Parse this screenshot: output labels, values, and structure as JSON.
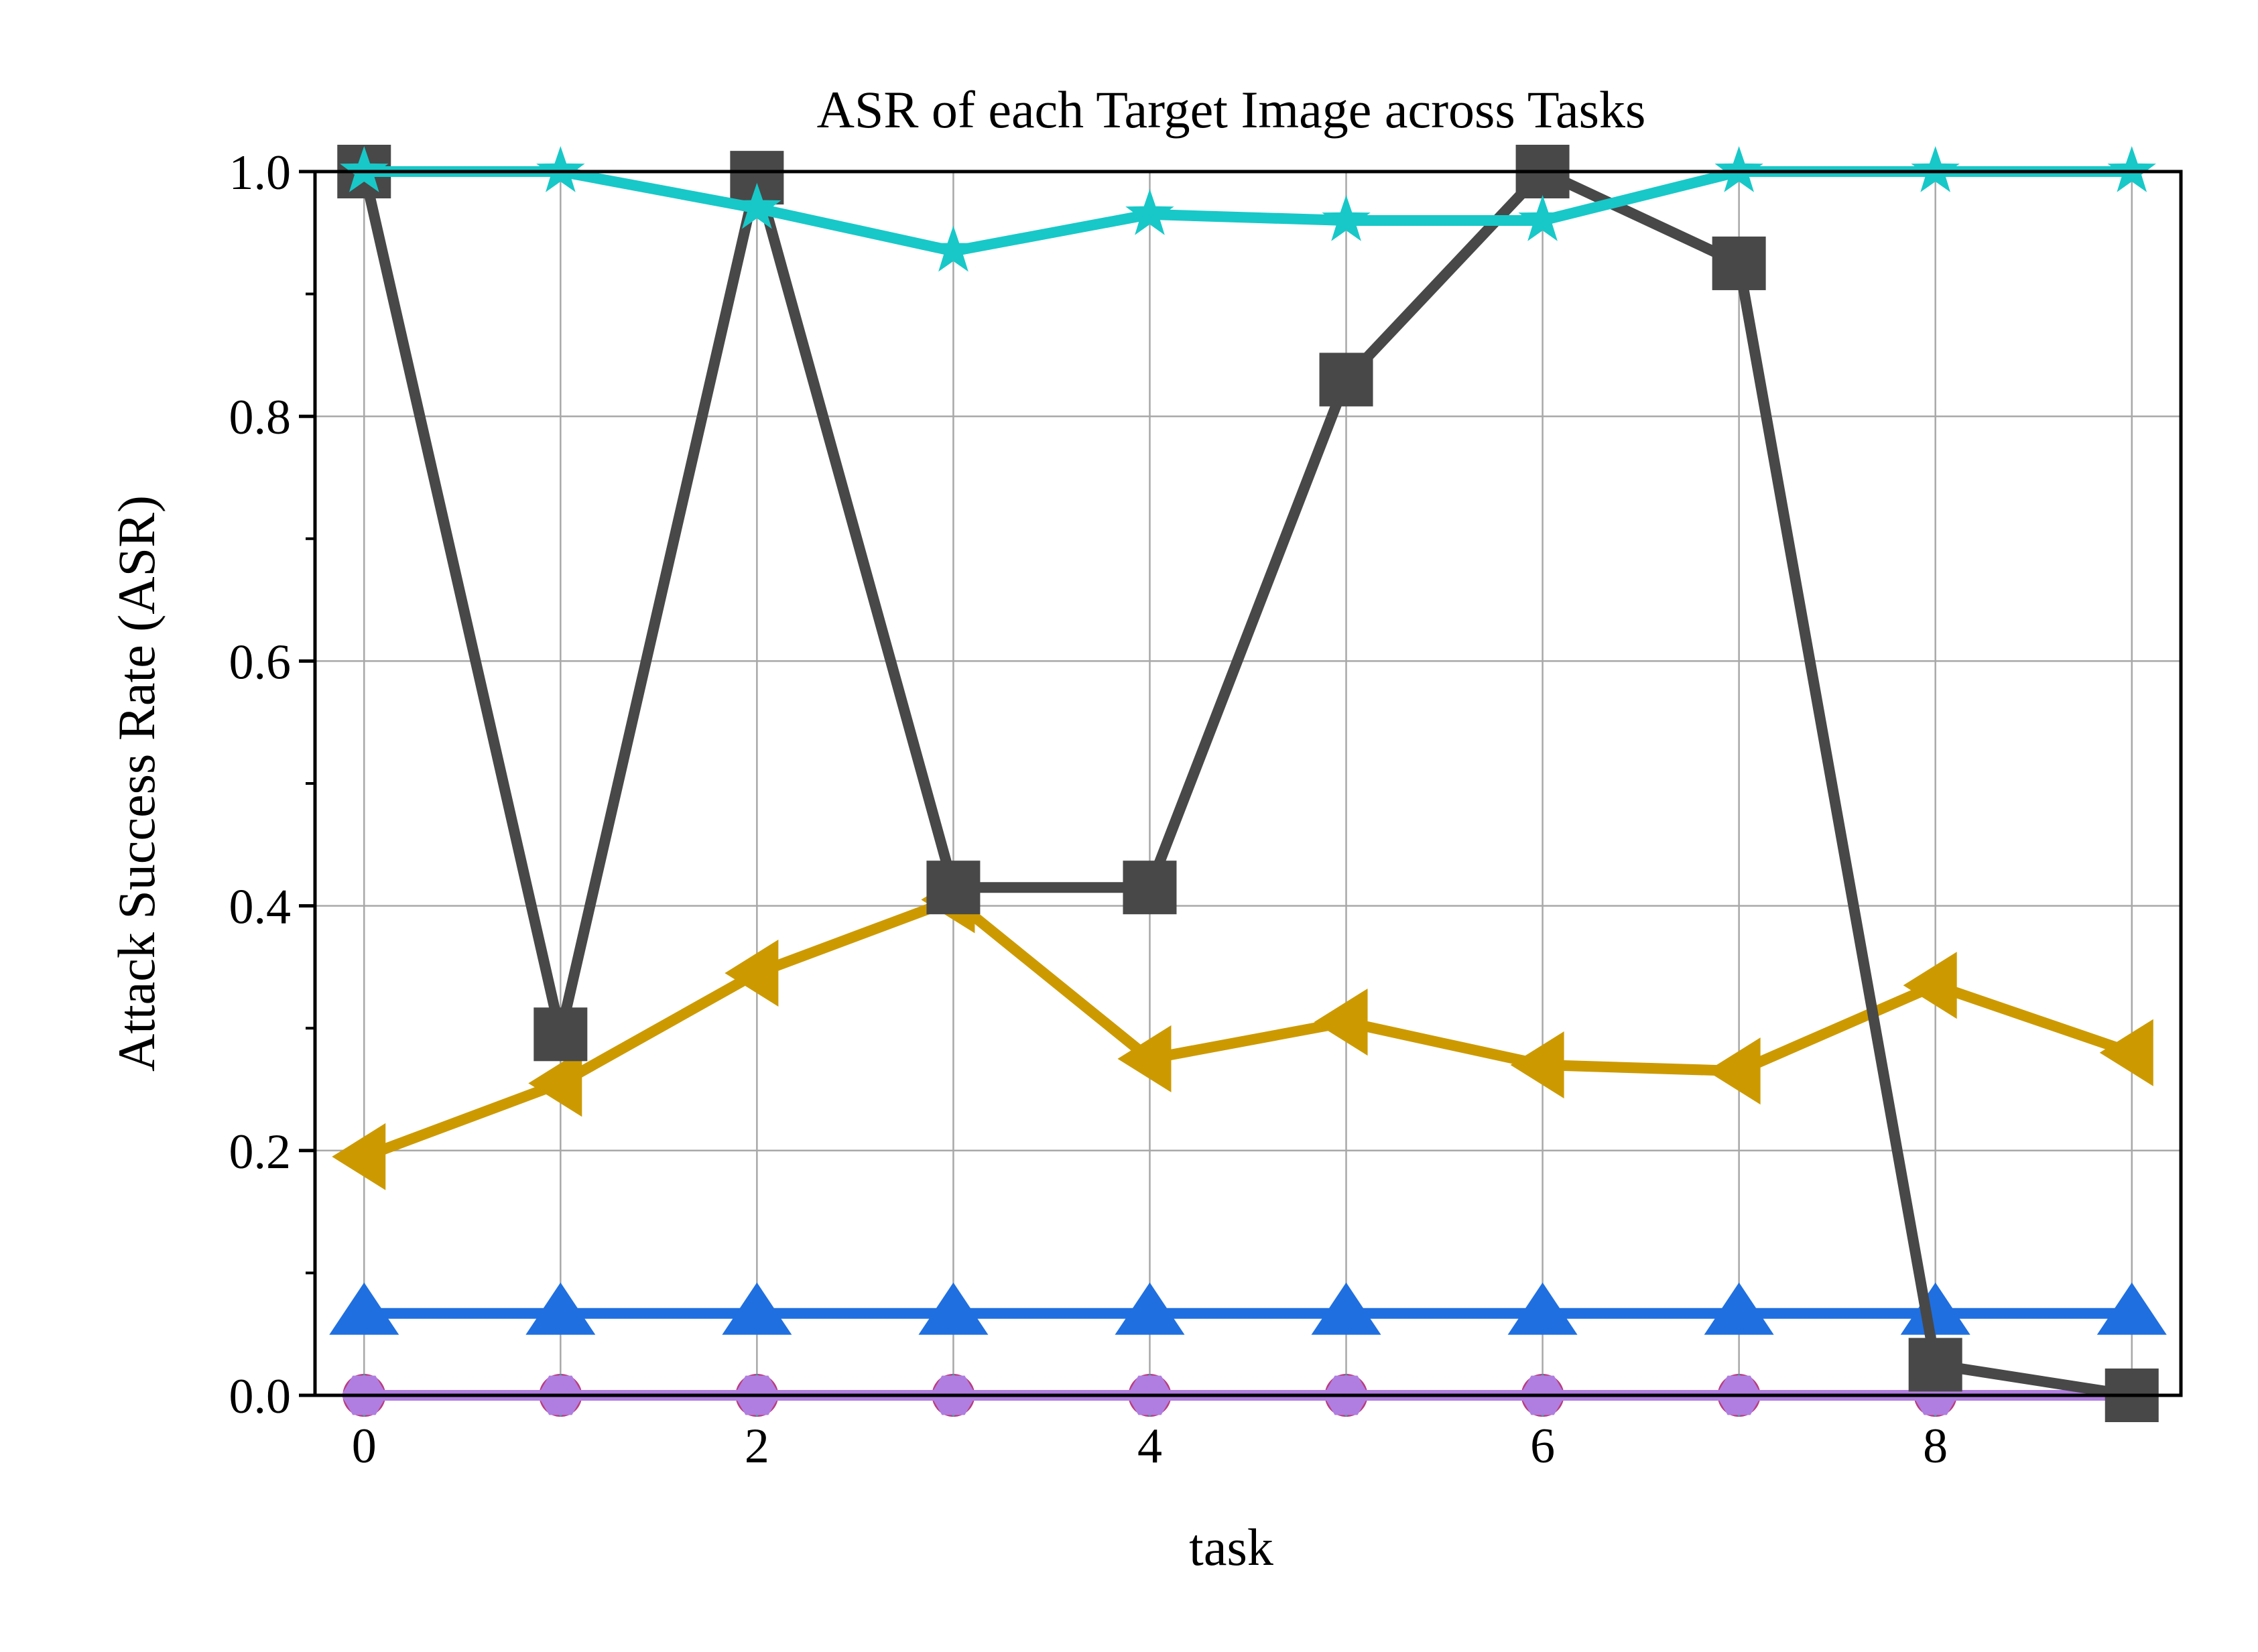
{
  "chart_data": {
    "type": "line",
    "title": "ASR of each Target Image across Tasks",
    "xlabel": "task",
    "ylabel": "Attack Success Rate (ASR)",
    "x": [
      0,
      1,
      2,
      3,
      4,
      5,
      6,
      7,
      8,
      9
    ],
    "xlim": [
      -0.25,
      9.25
    ],
    "ylim": [
      0.0,
      1.0
    ],
    "xticks": [
      0,
      2,
      4,
      6,
      8
    ],
    "yticks": [
      0.0,
      0.2,
      0.4,
      0.6,
      0.8,
      1.0
    ],
    "xtick_labels": [
      "0",
      "2",
      "4",
      "6",
      "8"
    ],
    "ytick_labels": [
      "0.0",
      "0.2",
      "0.4",
      "0.6",
      "0.8",
      "1.0"
    ],
    "grid": true,
    "series": [
      {
        "color": "#ba3b7f",
        "marker": "circle",
        "values": [
          0.0,
          0.0,
          0.0,
          0.0,
          0.0,
          0.0,
          0.0,
          0.0,
          0.0,
          0.0
        ]
      },
      {
        "color": "#3aa8a4",
        "marker": "diamond",
        "values": [
          0.0,
          0.0,
          0.0,
          0.0,
          0.0,
          0.0,
          0.0,
          0.0,
          0.0,
          0.0
        ]
      },
      {
        "color": "#b07ee0",
        "marker": "hexagon",
        "values": [
          0.0,
          0.0,
          0.0,
          0.0,
          0.0,
          0.0,
          0.0,
          0.0,
          0.0,
          0.0
        ]
      },
      {
        "color": "#1f6fe0",
        "marker": "triangle-up",
        "values": [
          0.067,
          0.067,
          0.067,
          0.067,
          0.067,
          0.067,
          0.067,
          0.067,
          0.067,
          0.067
        ]
      },
      {
        "color": "#cc9a00",
        "marker": "triangle-left",
        "values": [
          0.195,
          0.255,
          0.345,
          0.405,
          0.275,
          0.305,
          0.27,
          0.265,
          0.335,
          0.28
        ]
      },
      {
        "color": "#484848",
        "marker": "square",
        "values": [
          1.0,
          0.295,
          0.995,
          0.415,
          0.415,
          0.83,
          1.0,
          0.925,
          0.025,
          0.0
        ]
      },
      {
        "color": "#18c8c8",
        "marker": "star",
        "values": [
          1.0,
          1.0,
          0.97,
          0.935,
          0.965,
          0.96,
          0.96,
          1.0,
          1.0,
          1.0
        ]
      }
    ]
  }
}
